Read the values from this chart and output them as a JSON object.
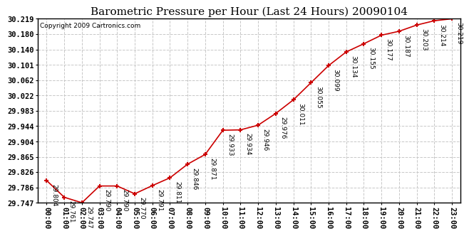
{
  "title": "Barometric Pressure per Hour (Last 24 Hours) 20090104",
  "copyright": "Copyright 2009 Cartronics.com",
  "hours": [
    "00:00",
    "01:00",
    "02:00",
    "03:00",
    "04:00",
    "05:00",
    "06:00",
    "07:00",
    "08:00",
    "09:00",
    "10:00",
    "11:00",
    "12:00",
    "13:00",
    "14:00",
    "15:00",
    "16:00",
    "17:00",
    "18:00",
    "19:00",
    "20:00",
    "21:00",
    "22:00",
    "23:00"
  ],
  "values": [
    29.804,
    29.761,
    29.747,
    29.79,
    29.79,
    29.77,
    29.791,
    29.811,
    29.846,
    29.871,
    29.933,
    29.934,
    29.946,
    29.976,
    30.011,
    30.055,
    30.099,
    30.134,
    30.155,
    30.177,
    30.187,
    30.203,
    30.214,
    30.219
  ],
  "line_color": "#cc0000",
  "marker_color": "#cc0000",
  "bg_color": "#ffffff",
  "grid_color": "#c8c8c8",
  "title_fontsize": 11,
  "copyright_fontsize": 6.5,
  "label_fontsize": 6.5,
  "tick_fontsize": 7.5,
  "ytick_values": [
    29.747,
    29.786,
    29.826,
    29.865,
    29.904,
    29.944,
    29.983,
    30.022,
    30.062,
    30.101,
    30.14,
    30.18,
    30.219
  ],
  "ylim_min": 29.747,
  "ylim_max": 30.219
}
